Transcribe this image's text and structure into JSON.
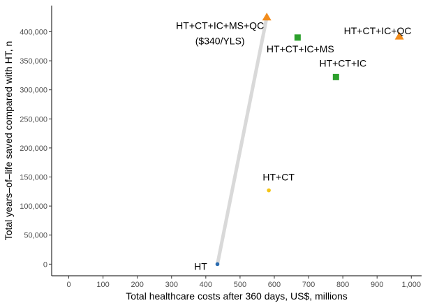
{
  "chart_data": {
    "type": "scatter",
    "title": "",
    "xlabel": "Total healthcare costs after 360 days, US$, millions",
    "ylabel": "Total years–of–life saved compared with HT, n",
    "xlim": [
      -50,
      1030
    ],
    "ylim": [
      -20000,
      445000
    ],
    "x_ticks": [
      0,
      100,
      200,
      300,
      400,
      500,
      600,
      700,
      800,
      900,
      1000
    ],
    "x_tick_labels": [
      "0",
      "100",
      "200",
      "300",
      "400",
      "500",
      "600",
      "700",
      "800",
      "900",
      "1,000"
    ],
    "y_ticks": [
      0,
      50000,
      100000,
      150000,
      200000,
      250000,
      300000,
      350000,
      400000
    ],
    "y_tick_labels": [
      "0",
      "50,000",
      "100,000",
      "150,000",
      "200,000",
      "250,000",
      "300,000",
      "350,000",
      "400,000"
    ],
    "grid": false,
    "legend": "none",
    "frontier": {
      "from": "HT",
      "to": "HT+CT+IC+MS+QC",
      "color": "#d9d9d9"
    },
    "points": [
      {
        "label": "HT",
        "x": 434,
        "y": 0,
        "shape": "circle",
        "color": "#2b6cb0"
      },
      {
        "label": "HT+CT",
        "x": 584,
        "y": 127000,
        "shape": "circle",
        "color": "#f5c518"
      },
      {
        "label": "HT+CT+IC",
        "x": 780,
        "y": 322000,
        "shape": "square",
        "color": "#2ca02c"
      },
      {
        "label": "HT+CT+IC+MS",
        "x": 668,
        "y": 390000,
        "shape": "square",
        "color": "#2ca02c"
      },
      {
        "label": "HT+CT+IC+MS+QC",
        "x": 578,
        "y": 425000,
        "shape": "triangle",
        "color": "#f28c1c",
        "annotation": "($340/YLS)"
      },
      {
        "label": "HT+CT+IC+QC",
        "x": 965,
        "y": 392000,
        "shape": "triangle",
        "color": "#f28c1c"
      }
    ]
  }
}
